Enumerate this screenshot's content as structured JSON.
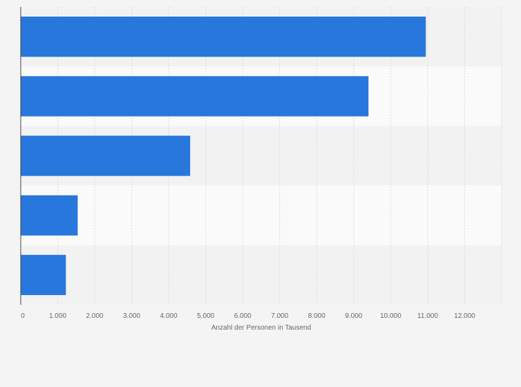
{
  "chart_data": {
    "type": "bar",
    "orientation": "horizontal",
    "categories": [
      "",
      "",
      "",
      "",
      ""
    ],
    "values": [
      10950,
      9400,
      4580,
      1540,
      1220
    ],
    "xlabel": "Anzahl der Personen in Tausend",
    "ylabel": "",
    "xlim": [
      0,
      13000
    ],
    "xticks": [
      0,
      1000,
      2000,
      3000,
      4000,
      5000,
      6000,
      7000,
      8000,
      9000,
      10000,
      11000,
      12000
    ],
    "xtick_labels": [
      "0",
      "1.000",
      "2.000",
      "3.000",
      "4.000",
      "5.000",
      "6.000",
      "7.000",
      "8.000",
      "9.000",
      "10.000",
      "11.000",
      "12.000"
    ],
    "grid": true,
    "colors": {
      "bar": "#2777dc"
    }
  }
}
